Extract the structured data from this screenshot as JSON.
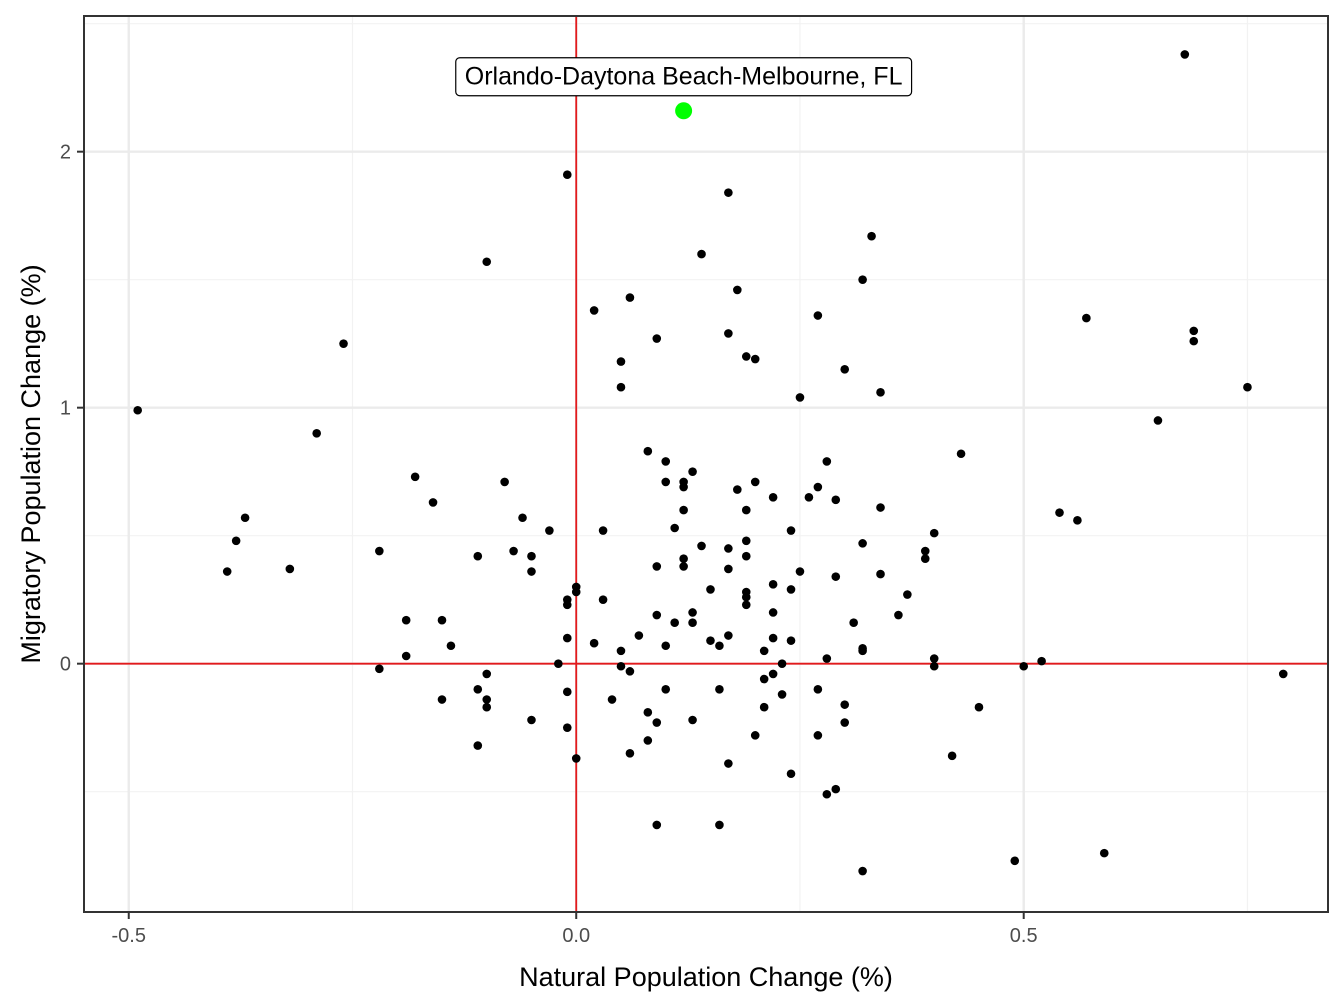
{
  "chart_data": {
    "type": "scatter",
    "title": "",
    "xlabel": "Natural Population Change (%)",
    "ylabel": "Migratory Population Change (%)",
    "xlim": [
      -0.55,
      0.84
    ],
    "ylim": [
      -0.97,
      2.53
    ],
    "x_ticks": [
      -0.5,
      0.0,
      0.5
    ],
    "x_tick_labels": [
      "-0.5",
      "0.0",
      "0.5"
    ],
    "y_ticks": [
      0,
      1,
      2
    ],
    "y_tick_labels": [
      "0",
      "1",
      "2"
    ],
    "grid": true,
    "reference_lines": {
      "x": 0,
      "y": 0,
      "color": "#e31a1c"
    },
    "point_color": "#000000",
    "highlight": {
      "label": "Orlando-Daytona Beach-Melbourne, FL",
      "x": 0.12,
      "y": 2.16,
      "color": "#00ff00"
    },
    "points": [
      [
        -0.49,
        0.99
      ],
      [
        -0.39,
        0.36
      ],
      [
        -0.37,
        0.57
      ],
      [
        -0.38,
        0.48
      ],
      [
        -0.32,
        0.37
      ],
      [
        -0.29,
        0.9
      ],
      [
        -0.26,
        1.25
      ],
      [
        -0.22,
        0.44
      ],
      [
        -0.22,
        -0.02
      ],
      [
        -0.19,
        0.17
      ],
      [
        -0.19,
        0.03
      ],
      [
        -0.18,
        0.73
      ],
      [
        -0.16,
        0.63
      ],
      [
        -0.15,
        0.17
      ],
      [
        -0.15,
        -0.14
      ],
      [
        -0.14,
        0.07
      ],
      [
        -0.11,
        0.42
      ],
      [
        -0.11,
        -0.1
      ],
      [
        -0.11,
        -0.32
      ],
      [
        -0.1,
        -0.04
      ],
      [
        -0.1,
        -0.14
      ],
      [
        -0.1,
        -0.17
      ],
      [
        -0.1,
        1.57
      ],
      [
        -0.08,
        0.71
      ],
      [
        -0.07,
        0.44
      ],
      [
        -0.06,
        0.57
      ],
      [
        -0.05,
        0.42
      ],
      [
        -0.05,
        0.36
      ],
      [
        -0.05,
        -0.22
      ],
      [
        -0.03,
        0.52
      ],
      [
        -0.02,
        0.0
      ],
      [
        -0.01,
        0.25
      ],
      [
        -0.01,
        0.23
      ],
      [
        -0.01,
        0.1
      ],
      [
        -0.01,
        -0.11
      ],
      [
        -0.01,
        -0.25
      ],
      [
        -0.01,
        1.91
      ],
      [
        0.0,
        0.3
      ],
      [
        0.0,
        0.28
      ],
      [
        0.0,
        -0.37
      ],
      [
        0.02,
        1.38
      ],
      [
        0.02,
        0.08
      ],
      [
        0.03,
        0.52
      ],
      [
        0.03,
        0.25
      ],
      [
        0.04,
        -0.14
      ],
      [
        0.05,
        1.18
      ],
      [
        0.05,
        1.08
      ],
      [
        0.05,
        0.05
      ],
      [
        0.05,
        -0.01
      ],
      [
        0.06,
        1.43
      ],
      [
        0.06,
        -0.03
      ],
      [
        0.06,
        -0.35
      ],
      [
        0.07,
        0.11
      ],
      [
        0.08,
        0.83
      ],
      [
        0.08,
        -0.19
      ],
      [
        0.08,
        -0.3
      ],
      [
        0.09,
        1.27
      ],
      [
        0.09,
        0.38
      ],
      [
        0.09,
        0.19
      ],
      [
        0.09,
        -0.23
      ],
      [
        0.09,
        -0.63
      ],
      [
        0.1,
        0.79
      ],
      [
        0.1,
        0.71
      ],
      [
        0.1,
        0.07
      ],
      [
        0.1,
        -0.1
      ],
      [
        0.11,
        0.53
      ],
      [
        0.11,
        0.16
      ],
      [
        0.12,
        0.71
      ],
      [
        0.12,
        0.69
      ],
      [
        0.12,
        0.6
      ],
      [
        0.12,
        0.41
      ],
      [
        0.12,
        0.38
      ],
      [
        0.13,
        0.75
      ],
      [
        0.13,
        0.2
      ],
      [
        0.13,
        0.16
      ],
      [
        0.13,
        -0.22
      ],
      [
        0.14,
        1.6
      ],
      [
        0.14,
        0.46
      ],
      [
        0.15,
        0.29
      ],
      [
        0.15,
        0.09
      ],
      [
        0.16,
        0.07
      ],
      [
        0.16,
        -0.1
      ],
      [
        0.16,
        -0.63
      ],
      [
        0.17,
        1.84
      ],
      [
        0.17,
        1.29
      ],
      [
        0.17,
        0.45
      ],
      [
        0.17,
        0.37
      ],
      [
        0.17,
        0.11
      ],
      [
        0.17,
        -0.39
      ],
      [
        0.18,
        1.46
      ],
      [
        0.18,
        0.68
      ],
      [
        0.19,
        1.2
      ],
      [
        0.19,
        0.6
      ],
      [
        0.19,
        0.48
      ],
      [
        0.19,
        0.42
      ],
      [
        0.19,
        0.28
      ],
      [
        0.19,
        0.26
      ],
      [
        0.19,
        0.23
      ],
      [
        0.2,
        1.19
      ],
      [
        0.2,
        0.71
      ],
      [
        0.2,
        -0.28
      ],
      [
        0.21,
        0.05
      ],
      [
        0.21,
        -0.06
      ],
      [
        0.21,
        -0.17
      ],
      [
        0.22,
        0.65
      ],
      [
        0.22,
        0.31
      ],
      [
        0.22,
        0.2
      ],
      [
        0.22,
        0.1
      ],
      [
        0.22,
        -0.04
      ],
      [
        0.23,
        0.0
      ],
      [
        0.23,
        -0.12
      ],
      [
        0.24,
        0.52
      ],
      [
        0.24,
        0.29
      ],
      [
        0.24,
        0.09
      ],
      [
        0.24,
        -0.43
      ],
      [
        0.25,
        1.04
      ],
      [
        0.25,
        0.36
      ],
      [
        0.26,
        0.65
      ],
      [
        0.27,
        1.36
      ],
      [
        0.27,
        0.69
      ],
      [
        0.27,
        -0.1
      ],
      [
        0.27,
        -0.28
      ],
      [
        0.28,
        0.79
      ],
      [
        0.28,
        0.02
      ],
      [
        0.28,
        -0.51
      ],
      [
        0.29,
        0.64
      ],
      [
        0.29,
        0.34
      ],
      [
        0.29,
        -0.49
      ],
      [
        0.3,
        1.15
      ],
      [
        0.3,
        -0.16
      ],
      [
        0.3,
        -0.23
      ],
      [
        0.31,
        0.16
      ],
      [
        0.32,
        1.5
      ],
      [
        0.32,
        0.47
      ],
      [
        0.32,
        0.06
      ],
      [
        0.32,
        0.05
      ],
      [
        0.32,
        -0.81
      ],
      [
        0.33,
        1.67
      ],
      [
        0.34,
        1.06
      ],
      [
        0.34,
        0.61
      ],
      [
        0.34,
        0.35
      ],
      [
        0.36,
        0.19
      ],
      [
        0.37,
        0.27
      ],
      [
        0.39,
        0.44
      ],
      [
        0.39,
        0.41
      ],
      [
        0.4,
        0.51
      ],
      [
        0.4,
        0.02
      ],
      [
        0.4,
        -0.01
      ],
      [
        0.42,
        -0.36
      ],
      [
        0.43,
        0.82
      ],
      [
        0.45,
        -0.17
      ],
      [
        0.49,
        -0.77
      ],
      [
        0.5,
        -0.01
      ],
      [
        0.52,
        0.01
      ],
      [
        0.54,
        0.59
      ],
      [
        0.56,
        0.56
      ],
      [
        0.57,
        1.35
      ],
      [
        0.59,
        -0.74
      ],
      [
        0.65,
        0.95
      ],
      [
        0.68,
        2.38
      ],
      [
        0.69,
        1.3
      ],
      [
        0.69,
        1.26
      ],
      [
        0.75,
        1.08
      ],
      [
        0.79,
        -0.04
      ]
    ]
  }
}
